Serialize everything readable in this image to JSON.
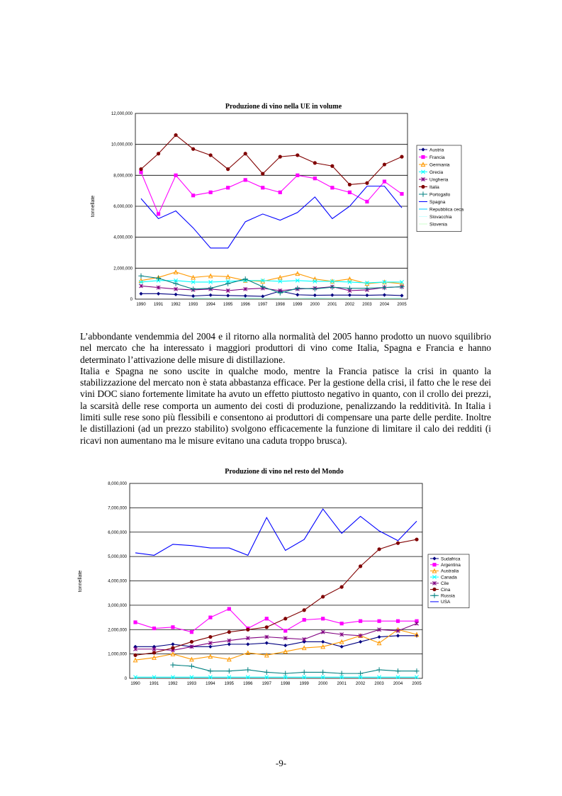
{
  "page_number": "-9-",
  "paragraphs": [
    "L’abbondante vendemmia del 2004 e il ritorno alla normalità del 2005 hanno prodotto un nuovo squilibrio nel mercato che ha interessato i maggiori produttori di vino come Italia, Spagna e Francia e hanno determinato l’attivazione delle misure di distillazione.",
    "Italia e Spagna ne sono uscite in qualche modo, mentre la Francia patisce la crisi in quanto la stabilizzazione del mercato non è stata abbastanza efficace. Per la gestione della crisi, il fatto che le rese dei vini DOC siano fortemente limitate ha avuto un effetto piuttosto negativo in quanto, con il crollo dei prezzi, la scarsità delle rese comporta un aumento dei costi di produzione, penalizzando la redditività. In Italia i limiti sulle rese sono più flessibili e consentono ai produttori di compensare una parte delle perdite. Inoltre le distillazioni (ad un prezzo stabilito) svolgono efficacemente la funzione di limitare il calo dei redditi (i ricavi non aumentano ma le misure evitano una caduta troppo brusca)."
  ],
  "chart_data": [
    {
      "type": "line",
      "title": "Produzione di vino nella UE in volume",
      "xlabel": "",
      "ylabel": "tonnellate",
      "ylim": [
        0,
        12000000
      ],
      "yticks": [
        "0",
        "2,000,000",
        "4,000,000",
        "6,000,000",
        "8,000,000",
        "10,000,000",
        "12,000,000"
      ],
      "grid": "horizontal",
      "legend_position": "right",
      "x": [
        "1990",
        "1991",
        "1992",
        "1993",
        "1994",
        "1995",
        "1996",
        "1997",
        "1998",
        "1999",
        "2000",
        "2001",
        "2002",
        "2003",
        "2004",
        "2005"
      ],
      "series": [
        {
          "name": "Austria",
          "color": "#000080",
          "marker": "diamond",
          "values": [
            350000,
            350000,
            300000,
            200000,
            260000,
            230000,
            210000,
            180000,
            520000,
            280000,
            250000,
            260000,
            260000,
            250000,
            270000,
            230000
          ]
        },
        {
          "name": "Francia",
          "color": "#ff00ff",
          "marker": "square",
          "values": [
            8200000,
            5500000,
            8000000,
            6700000,
            6900000,
            7200000,
            7700000,
            7200000,
            6900000,
            8000000,
            7800000,
            7200000,
            6900000,
            6300000,
            7600000,
            6800000
          ]
        },
        {
          "name": "Germania",
          "color": "#ff9900",
          "marker": "triangle",
          "values": [
            1200000,
            1400000,
            1750000,
            1400000,
            1500000,
            1450000,
            1200000,
            1150000,
            1400000,
            1650000,
            1300000,
            1150000,
            1300000,
            1000000,
            1100000,
            1000000
          ]
        },
        {
          "name": "Grecia",
          "color": "#00ffff",
          "marker": "x",
          "values": [
            1100000,
            1200000,
            1200000,
            1100000,
            1100000,
            1150000,
            1200000,
            1200000,
            1150000,
            1200000,
            1150000,
            1150000,
            1100000,
            1050000,
            1100000,
            1100000
          ]
        },
        {
          "name": "Ungheria",
          "color": "#800080",
          "marker": "star",
          "values": [
            850000,
            750000,
            650000,
            600000,
            650000,
            550000,
            650000,
            700000,
            550000,
            650000,
            700000,
            800000,
            550000,
            600000,
            750000,
            800000
          ]
        },
        {
          "name": "Italia",
          "color": "#800000",
          "marker": "circle",
          "values": [
            8400000,
            9400000,
            10600000,
            9700000,
            9300000,
            8400000,
            9400000,
            8100000,
            9200000,
            9300000,
            8800000,
            8600000,
            7400000,
            7500000,
            8700000,
            9200000
          ]
        },
        {
          "name": "Portogallo",
          "color": "#008080",
          "marker": "plus",
          "values": [
            1500000,
            1350000,
            1000000,
            650000,
            700000,
            1000000,
            1300000,
            800000,
            400000,
            700000,
            660000,
            770000,
            700000,
            700000,
            750000,
            800000
          ]
        },
        {
          "name": "Spagna",
          "color": "#0000ff",
          "marker": "line",
          "values": [
            6500000,
            5200000,
            5700000,
            4600000,
            3300000,
            3300000,
            5000000,
            5500000,
            5100000,
            5600000,
            6600000,
            5200000,
            6000000,
            7300000,
            7300000,
            5900000
          ]
        },
        {
          "name": "Repubblica ceca",
          "color": "#00ccff",
          "marker": "line",
          "values": [
            null,
            null,
            null,
            60000,
            50000,
            50000,
            60000,
            50000,
            50000,
            50000,
            60000,
            50000,
            50000,
            50000,
            50000,
            60000
          ]
        },
        {
          "name": "Slovacchia",
          "color": "#ccffff",
          "marker": "line",
          "values": [
            null,
            null,
            null,
            50000,
            50000,
            50000,
            50000,
            50000,
            50000,
            50000,
            50000,
            50000,
            50000,
            50000,
            50000,
            50000
          ]
        },
        {
          "name": "Slovenia",
          "color": "#ccffcc",
          "marker": "line",
          "values": [
            null,
            null,
            null,
            40000,
            40000,
            40000,
            40000,
            40000,
            40000,
            40000,
            40000,
            40000,
            40000,
            40000,
            40000,
            40000
          ]
        }
      ]
    },
    {
      "type": "line",
      "title": "Produzione di vino nel resto del Mondo",
      "xlabel": "",
      "ylabel": "tonnellate",
      "ylim": [
        0,
        8000000
      ],
      "yticks": [
        "0",
        "1,000,000",
        "2,000,000",
        "3,000,000",
        "4,000,000",
        "5,000,000",
        "6,000,000",
        "7,000,000",
        "8,000,000"
      ],
      "grid": "horizontal",
      "legend_position": "right",
      "x": [
        "1990",
        "1991",
        "1992",
        "1993",
        "1994",
        "1995",
        "1996",
        "1997",
        "1998",
        "1999",
        "2000",
        "2001",
        "2002",
        "2003",
        "2004",
        "2005"
      ],
      "series": [
        {
          "name": "Sudafrica",
          "color": "#000080",
          "marker": "diamond",
          "values": [
            1300000,
            1300000,
            1400000,
            1300000,
            1300000,
            1400000,
            1400000,
            1450000,
            1350000,
            1500000,
            1500000,
            1300000,
            1500000,
            1700000,
            1750000,
            1750000
          ]
        },
        {
          "name": "Argentina",
          "color": "#ff00ff",
          "marker": "square",
          "values": [
            2300000,
            2050000,
            2100000,
            1900000,
            2500000,
            2850000,
            2050000,
            2450000,
            1950000,
            2400000,
            2450000,
            2250000,
            2350000,
            2350000,
            2350000,
            2350000
          ]
        },
        {
          "name": "Australia",
          "color": "#ff9900",
          "marker": "triangle",
          "values": [
            750000,
            850000,
            1000000,
            780000,
            900000,
            780000,
            1050000,
            950000,
            1100000,
            1250000,
            1300000,
            1500000,
            1750000,
            1450000,
            2000000,
            1800000
          ]
        },
        {
          "name": "Canada",
          "color": "#00ffff",
          "marker": "x",
          "values": [
            50000,
            50000,
            50000,
            50000,
            50000,
            50000,
            50000,
            50000,
            50000,
            50000,
            50000,
            50000,
            50000,
            50000,
            50000,
            50000
          ]
        },
        {
          "name": "Cile",
          "color": "#800080",
          "marker": "star",
          "values": [
            1200000,
            1200000,
            1150000,
            1300000,
            1450000,
            1550000,
            1650000,
            1700000,
            1650000,
            1600000,
            1900000,
            1800000,
            1750000,
            2000000,
            1950000,
            2250000
          ]
        },
        {
          "name": "Cina",
          "color": "#800000",
          "marker": "circle",
          "values": [
            950000,
            1050000,
            1250000,
            1500000,
            1700000,
            1900000,
            2000000,
            2100000,
            2450000,
            2800000,
            3350000,
            3750000,
            4600000,
            5300000,
            5550000,
            5700000
          ]
        },
        {
          "name": "Russia",
          "color": "#008080",
          "marker": "plus",
          "values": [
            null,
            null,
            550000,
            500000,
            300000,
            300000,
            350000,
            250000,
            200000,
            250000,
            250000,
            200000,
            200000,
            350000,
            300000,
            300000
          ]
        },
        {
          "name": "USA",
          "color": "#0000ff",
          "marker": "line",
          "values": [
            5150000,
            5050000,
            5500000,
            5450000,
            5350000,
            5350000,
            5050000,
            6600000,
            5250000,
            5700000,
            6950000,
            5950000,
            6650000,
            6050000,
            5650000,
            6450000
          ]
        }
      ]
    }
  ]
}
